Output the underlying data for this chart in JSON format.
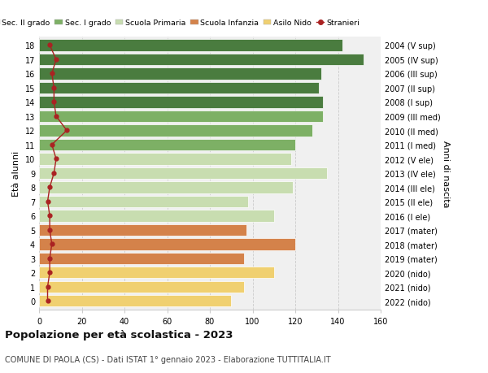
{
  "ages": [
    18,
    17,
    16,
    15,
    14,
    13,
    12,
    11,
    10,
    9,
    8,
    7,
    6,
    5,
    4,
    3,
    2,
    1,
    0
  ],
  "right_labels": [
    "2004 (V sup)",
    "2005 (IV sup)",
    "2006 (III sup)",
    "2007 (II sup)",
    "2008 (I sup)",
    "2009 (III med)",
    "2010 (II med)",
    "2011 (I med)",
    "2012 (V ele)",
    "2013 (IV ele)",
    "2014 (III ele)",
    "2015 (II ele)",
    "2016 (I ele)",
    "2017 (mater)",
    "2018 (mater)",
    "2019 (mater)",
    "2020 (nido)",
    "2021 (nido)",
    "2022 (nido)"
  ],
  "bar_values": [
    142,
    152,
    132,
    131,
    133,
    133,
    128,
    120,
    118,
    135,
    119,
    98,
    110,
    97,
    120,
    96,
    110,
    96,
    90
  ],
  "bar_colors": [
    "#4a7c3f",
    "#4a7c3f",
    "#4a7c3f",
    "#4a7c3f",
    "#4a7c3f",
    "#7db065",
    "#7db065",
    "#7db065",
    "#c8ddb0",
    "#c8ddb0",
    "#c8ddb0",
    "#c8ddb0",
    "#c8ddb0",
    "#d4824a",
    "#d4824a",
    "#d4824a",
    "#f0d070",
    "#f0d070",
    "#f0d070"
  ],
  "stranieri_values": [
    5,
    8,
    6,
    7,
    7,
    8,
    13,
    6,
    8,
    7,
    5,
    4,
    5,
    5,
    6,
    5,
    5,
    4,
    4
  ],
  "legend_labels": [
    "Sec. II grado",
    "Sec. I grado",
    "Scuola Primaria",
    "Scuola Infanzia",
    "Asilo Nido",
    "Stranieri"
  ],
  "legend_colors": [
    "#4a7c3f",
    "#7db065",
    "#c8ddb0",
    "#d4824a",
    "#f0d070",
    "#aa2222"
  ],
  "ylabel": "Età alunni",
  "right_ylabel": "Anni di nascita",
  "title": "Popolazione per età scolastica - 2023",
  "subtitle": "COMUNE DI PAOLA (CS) - Dati ISTAT 1° gennaio 2023 - Elaborazione TUTTITALIA.IT",
  "xlim": [
    0,
    160
  ],
  "xticks": [
    0,
    20,
    40,
    60,
    80,
    100,
    120,
    140,
    160
  ],
  "bg_color": "#ffffff",
  "plot_bg_color": "#f0f0f0"
}
